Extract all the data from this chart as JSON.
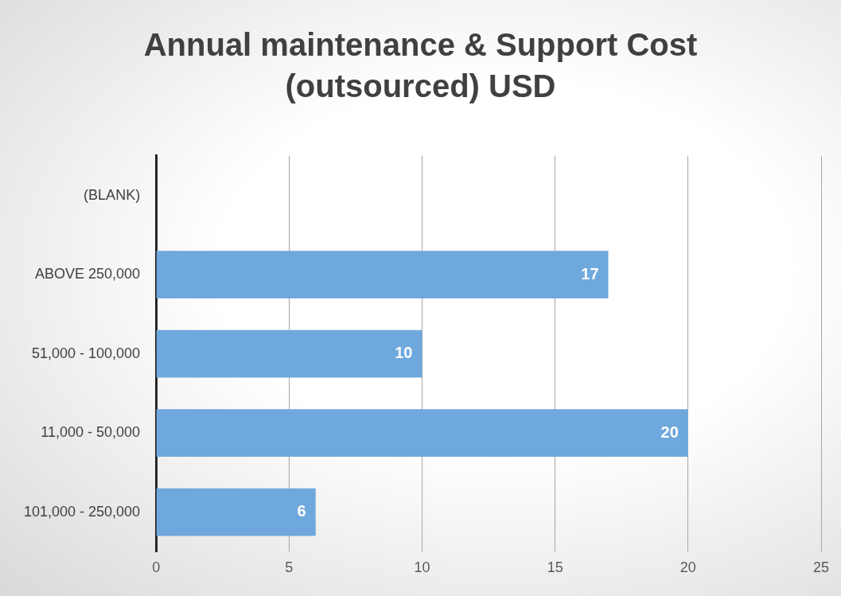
{
  "chart_data": {
    "type": "bar",
    "orientation": "horizontal",
    "title": "Annual maintenance & Support Cost (outsourced) USD",
    "categories": [
      "(BLANK)",
      "ABOVE 250,000",
      "51,000 - 100,000",
      "11,000 - 50,000",
      "101,000 - 250,000"
    ],
    "values": [
      null,
      17,
      10,
      20,
      6
    ],
    "color": "#6fa8dc",
    "xlim": [
      0,
      25
    ],
    "xticks": [
      0,
      5,
      10,
      15,
      20,
      25
    ],
    "grid": "x",
    "data_labels": true,
    "legend": false
  }
}
